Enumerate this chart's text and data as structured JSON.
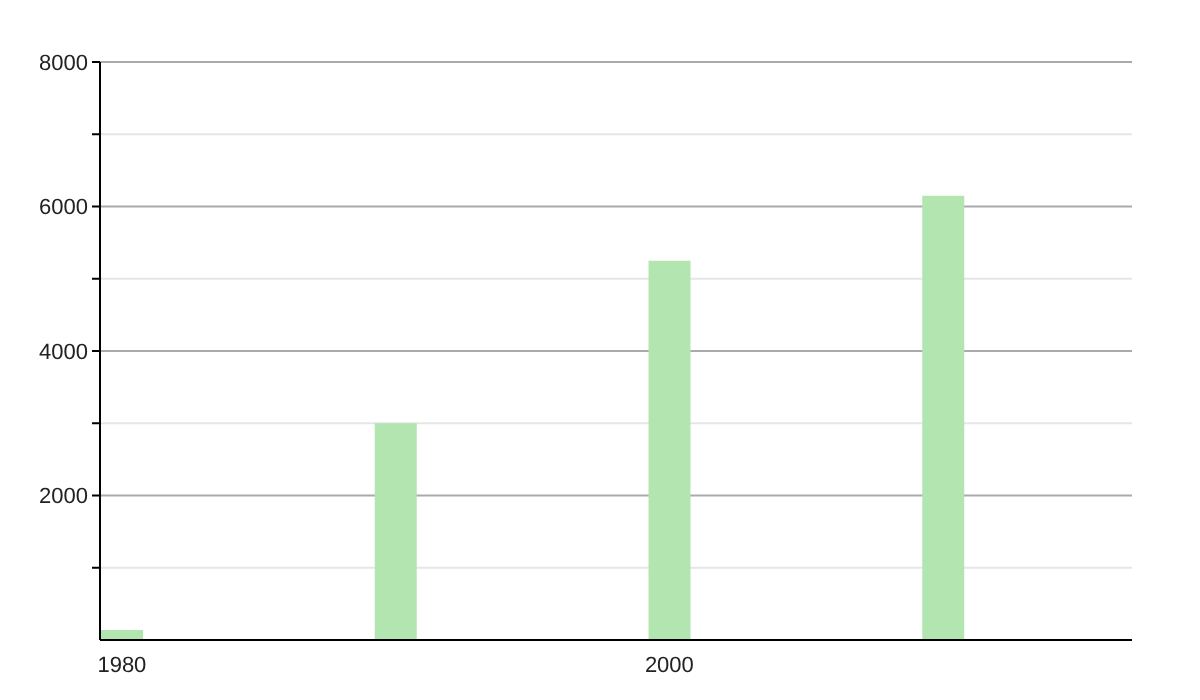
{
  "chart_data": {
    "type": "bar",
    "x": [
      1980,
      1990,
      2000,
      2010
    ],
    "values": [
      140,
      3000,
      5250,
      6150
    ],
    "color": "#b3e5b0",
    "xlim": [
      1979.2,
      2016.9
    ],
    "xticks": [
      1980,
      2000
    ],
    "ylim": [
      0,
      8000
    ],
    "yticks": [
      {
        "value": 1000,
        "label": null
      },
      2000,
      {
        "value": 3000,
        "label": null
      },
      4000,
      {
        "value": 5000,
        "label": null
      },
      6000,
      {
        "value": 7000,
        "label": null
      },
      8000
    ],
    "grid": "y"
  }
}
